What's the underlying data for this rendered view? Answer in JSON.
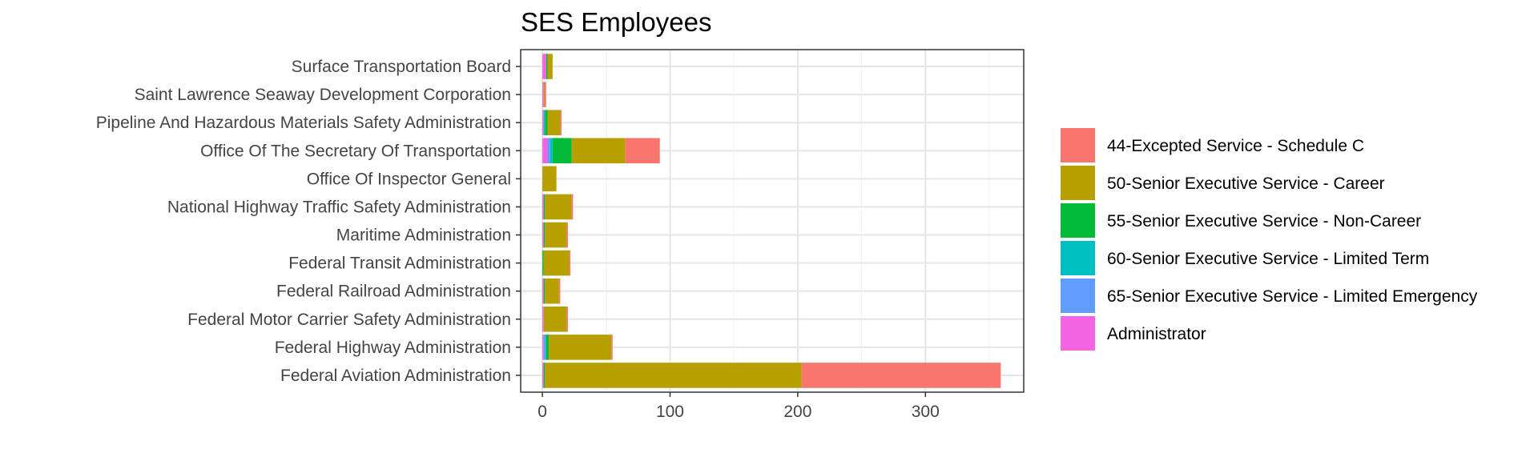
{
  "chart_data": {
    "type": "bar",
    "orientation": "horizontal",
    "stacked": true,
    "title": "SES Employees",
    "xlabel": "",
    "ylabel": "",
    "xlim": [
      -17,
      377
    ],
    "xticks": [
      0,
      100,
      200,
      300
    ],
    "grid": true,
    "legend_position": "right",
    "categories": [
      "Surface Transportation Board",
      "Saint Lawrence Seaway Development Corporation",
      "Pipeline And Hazardous Materials Safety Administration",
      "Office Of The Secretary Of Transportation",
      "Office Of Inspector General",
      "National Highway Traffic Safety Administration",
      "Maritime Administration",
      "Federal Transit Administration",
      "Federal Railroad Administration",
      "Federal Motor Carrier Safety Administration",
      "Federal Highway Administration",
      "Federal Aviation Administration"
    ],
    "stack_order": [
      "Administrator",
      "65-Senior Executive Service - Limited Emergency",
      "60-Senior Executive Service - Limited Term",
      "55-Senior Executive Service - Non-Career",
      "50-Senior Executive Service - Career",
      "44-Excepted Service - Schedule C"
    ],
    "series": [
      {
        "name": "44-Excepted Service - Schedule C",
        "color": "#F8766D",
        "values": [
          0,
          1,
          1,
          27,
          0,
          1,
          1,
          1,
          1,
          1,
          1,
          156
        ]
      },
      {
        "name": "50-Senior Executive Service - Career",
        "color": "#B79F00",
        "values": [
          4,
          1,
          10,
          42,
          11,
          21,
          17,
          20,
          11,
          18,
          49,
          201
        ]
      },
      {
        "name": "55-Senior Executive Service - Non-Career",
        "color": "#00BA38",
        "values": [
          1,
          0,
          2,
          15,
          0,
          1,
          1,
          1,
          1,
          0,
          2,
          1
        ]
      },
      {
        "name": "60-Senior Executive Service - Limited Term",
        "color": "#00BFC4",
        "values": [
          0,
          0,
          1,
          2,
          0,
          0,
          0,
          0,
          0,
          0,
          1,
          0
        ]
      },
      {
        "name": "65-Senior Executive Service - Limited Emergency",
        "color": "#619CFF",
        "values": [
          0,
          0,
          0,
          2,
          0,
          0,
          0,
          0,
          0,
          0,
          1,
          0
        ]
      },
      {
        "name": "Administrator",
        "color": "#F564E3",
        "values": [
          3,
          1,
          1,
          4,
          0,
          1,
          1,
          0,
          1,
          1,
          1,
          1
        ]
      }
    ]
  }
}
